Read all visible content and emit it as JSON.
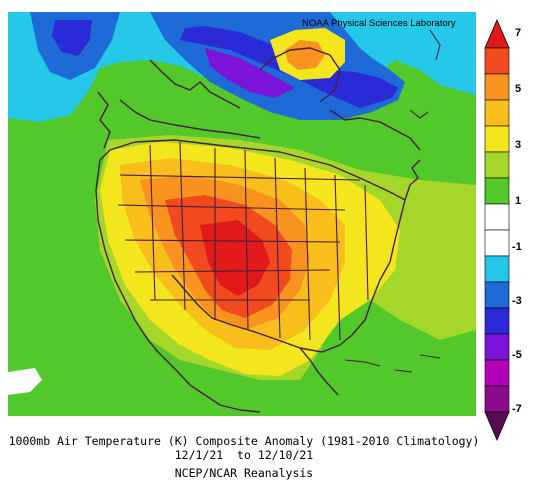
{
  "credit": "NOAA Physical Sciences Laboratory",
  "caption": {
    "line1": "1000mb Air Temperature (K) Composite Anomaly (1981-2010 Climatology)",
    "line2": "12/1/21  to 12/10/21",
    "line3": "NCEP/NCAR Reanalysis"
  },
  "colorbar": {
    "tick_labels": [
      "7",
      "5",
      "3",
      "1",
      "-1",
      "-3",
      "-5",
      "-7"
    ],
    "colors": {
      "c1": "#5a0a55",
      "c2": "#b100b7",
      "c3": "#7a14d8",
      "c4": "#2a2ad6",
      "c5": "#1e6ad6",
      "c6": "#25c8e8",
      "c7": "#ffffff",
      "c8": "#ffffff",
      "c9": "#52c82a",
      "c10": "#a5d62a",
      "c11": "#f4e61c",
      "c12": "#f7be1c",
      "c13": "#f7931e",
      "c14": "#f04a1e",
      "c15": "#e01a1a"
    }
  },
  "map": {
    "title_units": "K",
    "region": "North America",
    "shading": "anomaly"
  }
}
